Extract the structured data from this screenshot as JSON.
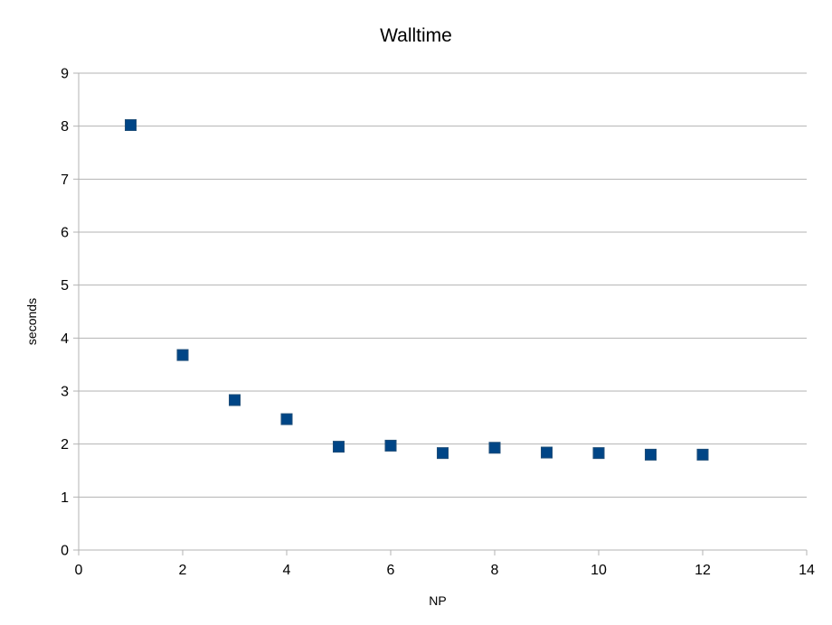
{
  "chart_data": {
    "type": "scatter",
    "title": "Walltime",
    "xlabel": "NP",
    "ylabel": "seconds",
    "xlim": [
      0,
      14
    ],
    "ylim": [
      0,
      9
    ],
    "xticks": [
      0,
      2,
      4,
      6,
      8,
      10,
      12,
      14
    ],
    "yticks": [
      0,
      1,
      2,
      3,
      4,
      5,
      6,
      7,
      8,
      9
    ],
    "grid": true,
    "legend": "none",
    "marker": "square",
    "color": "#004586",
    "series": [
      {
        "x": [
          1,
          2,
          3,
          4,
          5,
          6,
          7,
          8,
          9,
          10,
          11,
          12
        ],
        "y": [
          8.02,
          3.68,
          2.83,
          2.47,
          1.95,
          1.97,
          1.83,
          1.93,
          1.84,
          1.83,
          1.8,
          1.8
        ]
      }
    ]
  }
}
